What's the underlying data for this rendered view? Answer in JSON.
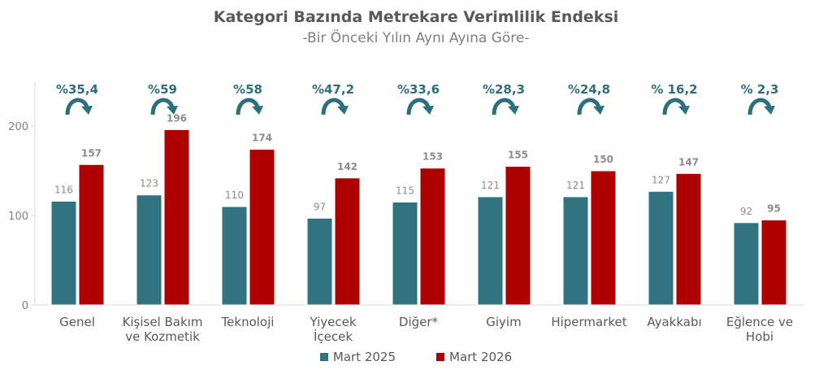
{
  "chart_data": {
    "type": "bar",
    "title": "Kategori Bazında Metrekare Verimlilik Endeksi",
    "subtitle": "-Bir Önceki Yılın Aynı Ayına Göre-",
    "categories": [
      [
        "Genel"
      ],
      [
        "Kişisel Bakım",
        "ve Kozmetik"
      ],
      [
        "Teknoloji"
      ],
      [
        "Yiyecek",
        "İçecek"
      ],
      [
        "Diğer*"
      ],
      [
        "Giyim"
      ],
      [
        "Hipermarket"
      ],
      [
        "Ayakkabı"
      ],
      [
        "Eğlence ve",
        "Hobi"
      ]
    ],
    "series": [
      {
        "name": "Mart 2025",
        "color": "#317380",
        "values": [
          116,
          123,
          110,
          97,
          115,
          121,
          121,
          127,
          92
        ]
      },
      {
        "name": "Mart 2026",
        "color": "#AE0000",
        "values": [
          157,
          196,
          174,
          142,
          153,
          155,
          150,
          147,
          95
        ]
      }
    ],
    "change_labels": [
      "%35,4",
      "%59",
      "%58",
      "%47,2",
      "%33,6",
      "%28,3",
      "%24,8",
      "% 16,2",
      "% 2,3"
    ],
    "change_color": "#2E6F7E",
    "yticks": [
      0,
      100,
      200
    ],
    "ylim": [
      0,
      250
    ],
    "grid": false,
    "legend": "bottom"
  }
}
